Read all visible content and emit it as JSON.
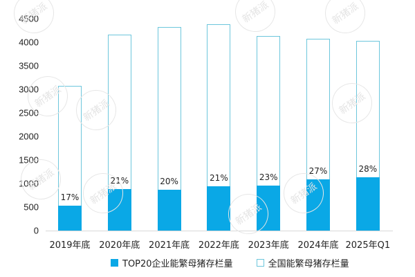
{
  "chart_data": {
    "type": "bar",
    "title": "",
    "xlabel": "",
    "ylabel": "",
    "ylim": [
      0,
      4500
    ],
    "yticks": [
      0,
      500,
      1000,
      1500,
      2000,
      2500,
      3000,
      3500,
      4000,
      4500
    ],
    "grid": false,
    "legend_position": "bottom",
    "categories": [
      "2019年底",
      "2020年底",
      "2021年底",
      "2022年底",
      "2023年底",
      "2024年底",
      "2025年Q1"
    ],
    "series": [
      {
        "name": "TOP20企业能繁母猪存栏量",
        "style": "filled",
        "color": "#0aa8e6",
        "values": [
          530,
          880,
          870,
          940,
          955,
          1090,
          1130
        ]
      },
      {
        "name": "全国能繁母猪存栏量",
        "style": "outline",
        "color": "#6cc6dc",
        "values": [
          3080,
          4160,
          4320,
          4380,
          4130,
          4070,
          4030
        ]
      }
    ],
    "annotations": [
      "17%",
      "21%",
      "20%",
      "21%",
      "23%",
      "27%",
      "28%"
    ]
  },
  "legend": {
    "top20": "TOP20企业能繁母猪存栏量",
    "national": "全国能繁母猪存栏量"
  },
  "watermark": "新猪派"
}
